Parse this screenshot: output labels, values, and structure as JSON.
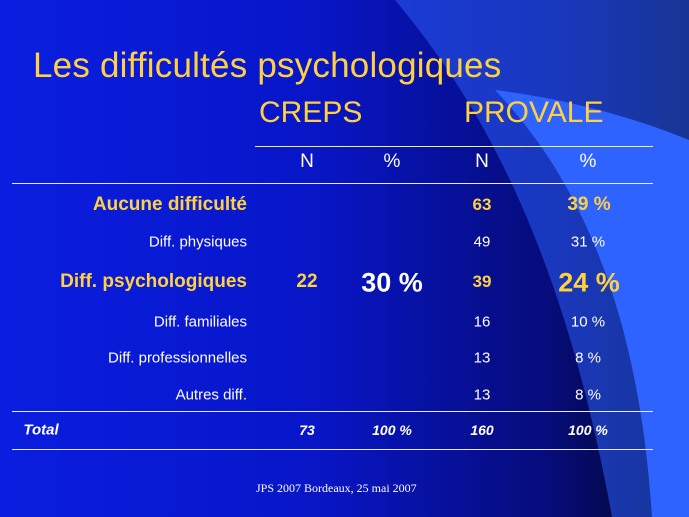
{
  "slide": {
    "title": "Les difficultés psychologiques",
    "footer": "JPS 2007 Bordeaux, 25 mai 2007",
    "colors": {
      "background": "#0a1ee0",
      "title": "#ffd040",
      "swoosh": "#2a5cf8",
      "text": "#ffffff"
    }
  },
  "table": {
    "groups": [
      "CREPS",
      "PROVALE"
    ],
    "columns": [
      "N",
      "%",
      "N",
      "%"
    ],
    "rows": [
      {
        "label": "Aucune difficulté",
        "creps_n": "",
        "creps_pct": "",
        "provale_n": "63",
        "provale_pct": "39 %"
      },
      {
        "label": "Diff. physiques",
        "creps_n": "",
        "creps_pct": "",
        "provale_n": "49",
        "provale_pct": "31 %"
      },
      {
        "label": "Diff. psychologiques",
        "creps_n": "22",
        "creps_pct": "30 %",
        "provale_n": "39",
        "provale_pct": "24 %"
      },
      {
        "label": "Diff. familiales",
        "creps_n": "",
        "creps_pct": "",
        "provale_n": "16",
        "provale_pct": "10 %"
      },
      {
        "label": "Diff. professionnelles",
        "creps_n": "",
        "creps_pct": "",
        "provale_n": "13",
        "provale_pct": "8 %"
      },
      {
        "label": "Autres diff.",
        "creps_n": "",
        "creps_pct": "",
        "provale_n": "13",
        "provale_pct": "8 %"
      }
    ],
    "total": {
      "label": "Total",
      "creps_n": "73",
      "creps_pct": "100 %",
      "provale_n": "160",
      "provale_pct": "100 %"
    }
  }
}
